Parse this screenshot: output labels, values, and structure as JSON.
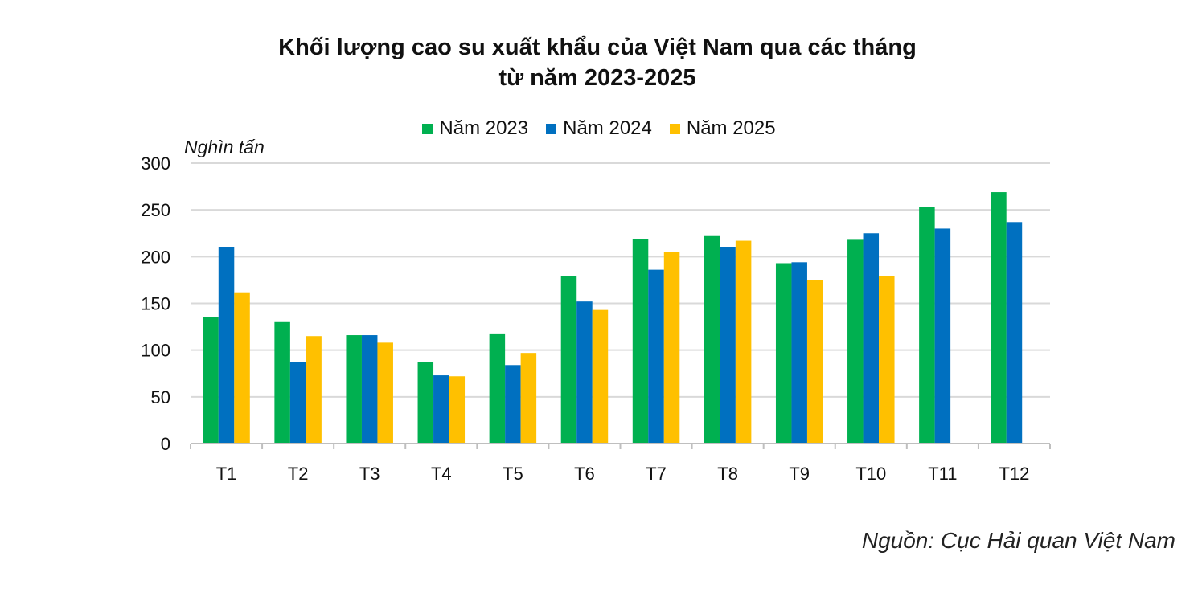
{
  "chart_data": {
    "type": "bar",
    "title": "Khối lượng cao su xuất khẩu của Việt Nam qua các tháng",
    "subtitle": "từ năm 2023-2025",
    "ylabel": "Nghìn tấn",
    "xlabel": "",
    "ylim": [
      0,
      300
    ],
    "yticks": [
      0,
      50,
      100,
      150,
      200,
      250,
      300
    ],
    "grid": true,
    "legend_position": "top-center",
    "categories": [
      "T1",
      "T2",
      "T3",
      "T4",
      "T5",
      "T6",
      "T7",
      "T8",
      "T9",
      "T10",
      "T11",
      "T12"
    ],
    "series": [
      {
        "name": "Năm 2023",
        "color": "#00B050",
        "values": [
          135,
          130,
          116,
          87,
          117,
          179,
          219,
          222,
          193,
          218,
          253,
          269
        ]
      },
      {
        "name": "Năm 2024",
        "color": "#0070C0",
        "values": [
          210,
          87,
          116,
          73,
          84,
          152,
          186,
          210,
          194,
          225,
          230,
          237
        ]
      },
      {
        "name": "Năm 2025",
        "color": "#FFC000",
        "values": [
          161,
          115,
          108,
          72,
          97,
          143,
          205,
          217,
          175,
          179,
          null,
          null
        ]
      }
    ],
    "source": "Nguồn: Cục Hải quan Việt Nam"
  }
}
